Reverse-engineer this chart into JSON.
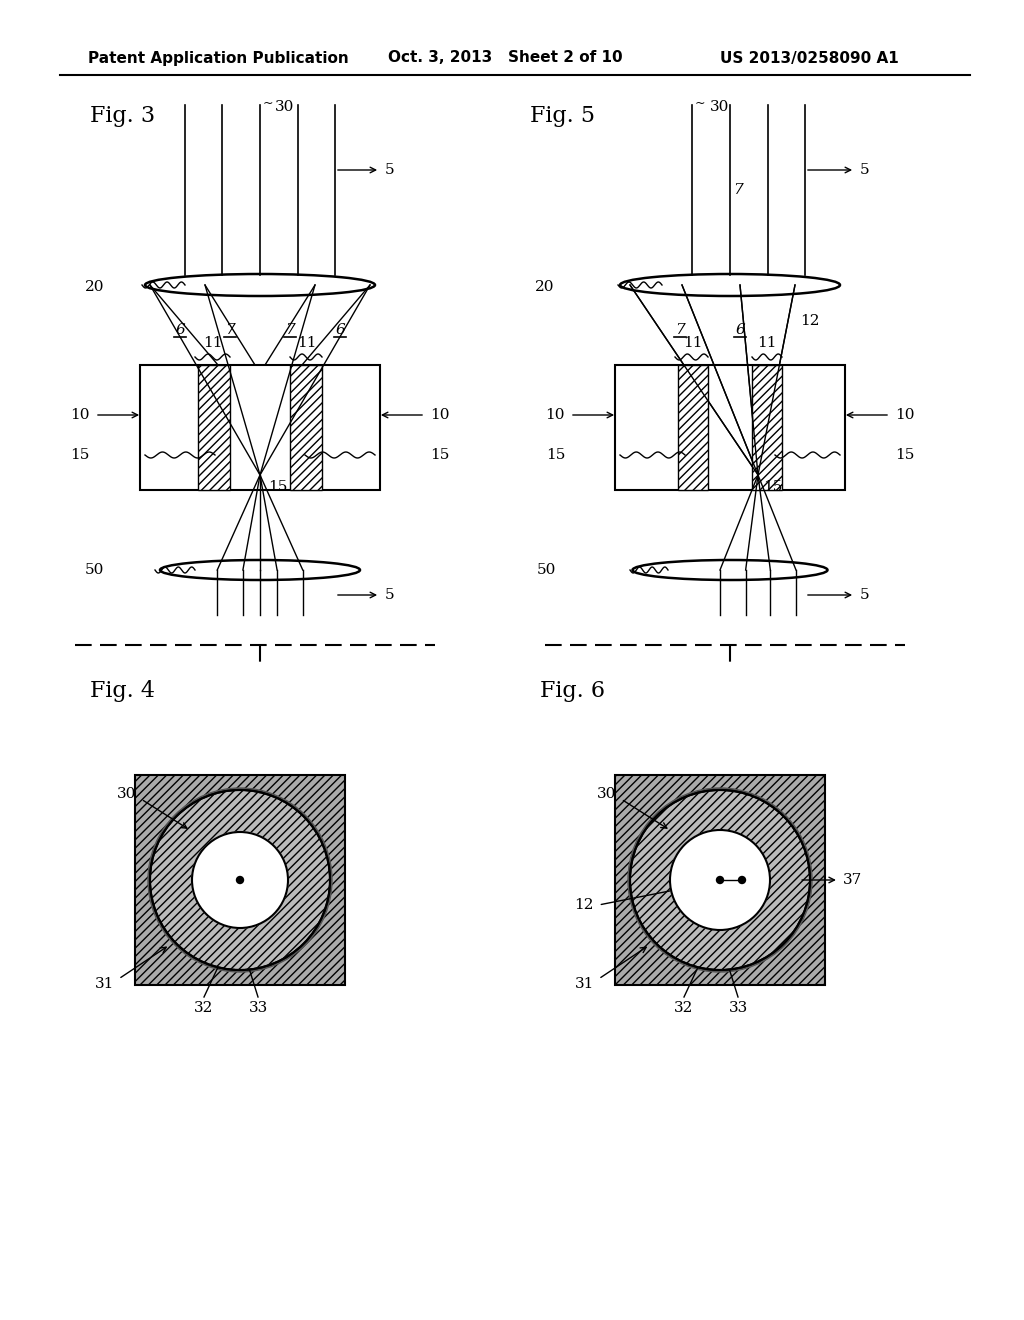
{
  "bg_color": "#ffffff",
  "header_left": "Patent Application Publication",
  "header_center": "Oct. 3, 2013   Sheet 2 of 10",
  "header_right": "US 2013/0258090 A1"
}
